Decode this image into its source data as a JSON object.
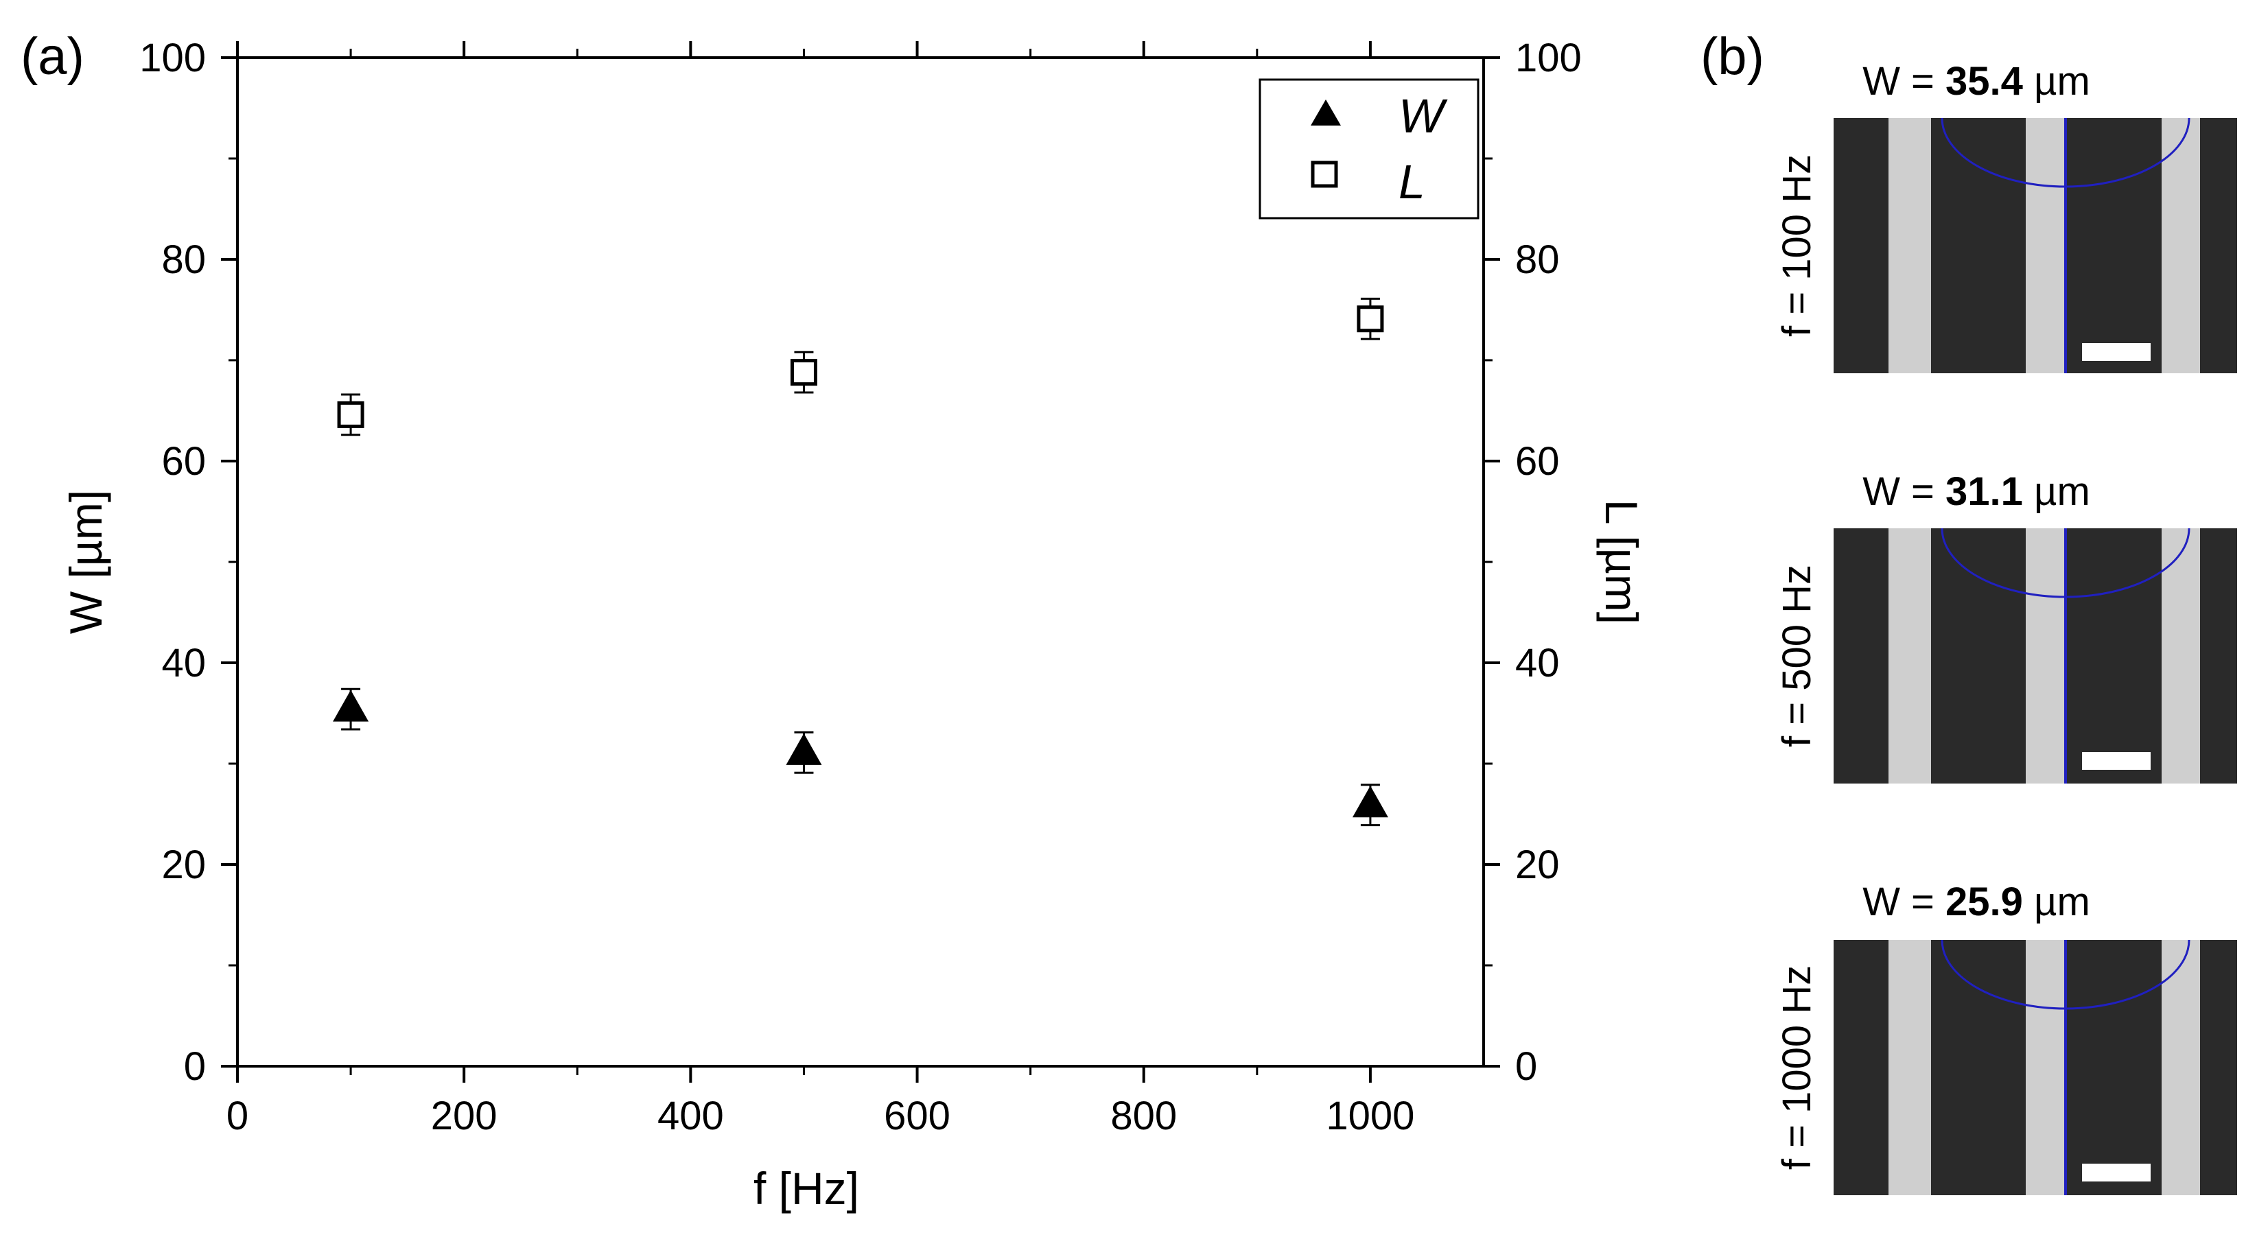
{
  "panel_a_label": "(a)",
  "panel_b_label": "(b)",
  "chart_data": {
    "type": "scatter",
    "xlabel": "f [Hz]",
    "ylabel_left": "W [µm]",
    "ylabel_right": "L [µm]",
    "xlim": [
      0,
      1100
    ],
    "ylim_left": [
      0,
      100
    ],
    "ylim_right": [
      0,
      100
    ],
    "x_ticks": [
      0,
      200,
      400,
      600,
      800,
      1000
    ],
    "y_ticks": [
      0,
      20,
      40,
      60,
      80,
      100
    ],
    "legend_position": "top-right",
    "series": [
      {
        "name": "W",
        "marker": "filled-triangle",
        "axis": "left",
        "x": [
          100,
          500,
          1000
        ],
        "y": [
          35.4,
          31.1,
          25.9
        ],
        "err": [
          2.0,
          2.0,
          2.0
        ]
      },
      {
        "name": "L",
        "marker": "open-square",
        "axis": "right",
        "x": [
          100,
          500,
          1000
        ],
        "y": [
          64.6,
          68.8,
          74.1
        ],
        "err": [
          2.0,
          2.0,
          2.0
        ]
      }
    ]
  },
  "micrographs": [
    {
      "f_label": "f = 100 Hz",
      "w_prefix": "W = ",
      "w_value": "35.4",
      "w_unit": " µm"
    },
    {
      "f_label": "f = 500 Hz",
      "w_prefix": "W = ",
      "w_value": "31.1",
      "w_unit": " µm"
    },
    {
      "f_label": "f = 1000 Hz",
      "w_prefix": "W = ",
      "w_value": "25.9",
      "w_unit": " µm"
    }
  ],
  "colors": {
    "marker": "#000000",
    "micrograph_bg": "#2a2a2a",
    "strip": "#cfcfcf",
    "overlay": "#2020c0",
    "scale_bar": "#ffffff"
  }
}
